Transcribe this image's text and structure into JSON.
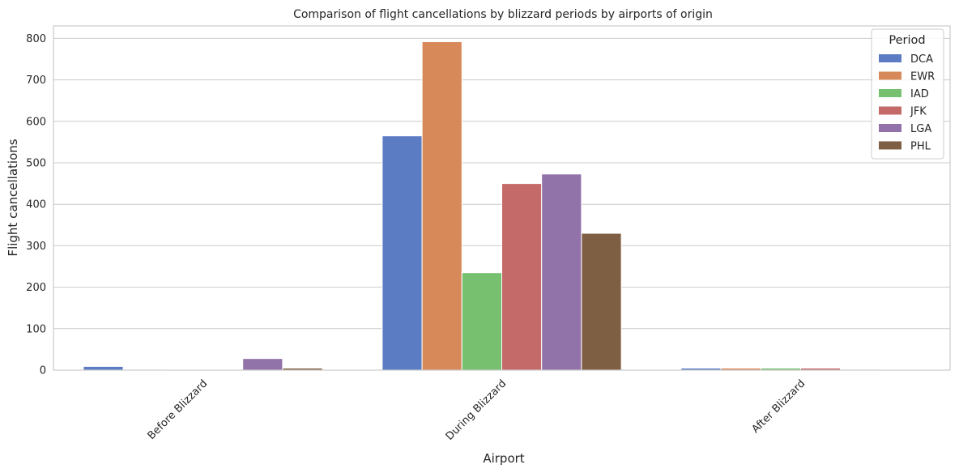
{
  "chart_data": {
    "type": "bar",
    "title": "Comparison of flight cancellations by blizzard periods by airports of origin",
    "xlabel": "Airport",
    "ylabel": "Flight cancellations",
    "ylim": [
      0,
      820
    ],
    "yticks": [
      0,
      100,
      200,
      300,
      400,
      500,
      600,
      700,
      800
    ],
    "grid": true,
    "legend_title": "Period",
    "legend_position": "top-right",
    "categories": [
      "Before Blizzard",
      "During Blizzard",
      "After Blizzard"
    ],
    "series": [
      {
        "name": "DCA",
        "color": "#5b7cc3",
        "values": [
          9,
          565,
          5
        ]
      },
      {
        "name": "EWR",
        "color": "#d8895a",
        "values": [
          2,
          792,
          5
        ]
      },
      {
        "name": "IAD",
        "color": "#77c070",
        "values": [
          1,
          235,
          5
        ]
      },
      {
        "name": "JFK",
        "color": "#c46a69",
        "values": [
          1,
          450,
          5
        ]
      },
      {
        "name": "LGA",
        "color": "#9273a9",
        "values": [
          28,
          473,
          2
        ]
      },
      {
        "name": "PHL",
        "color": "#7f5f44",
        "values": [
          5,
          330,
          1
        ]
      }
    ]
  }
}
